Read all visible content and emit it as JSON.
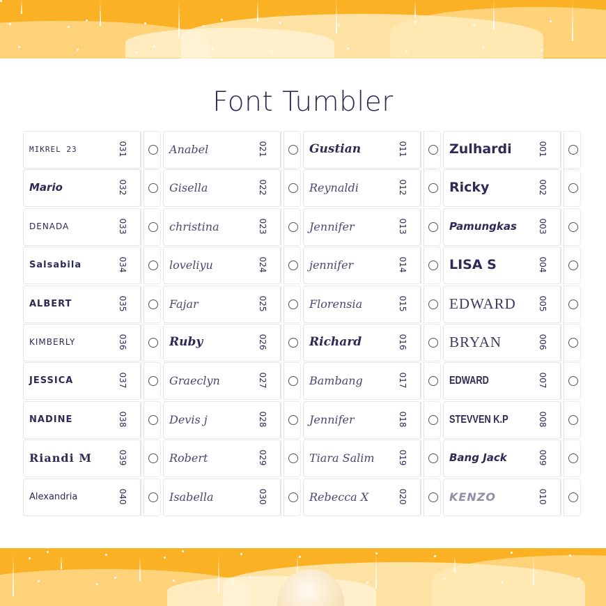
{
  "title": "Font Tumbler",
  "colors": {
    "background": "#fbb124",
    "text": "#2d2a55",
    "panel": "#ffffff"
  },
  "columns": [
    {
      "items": [
        {
          "name": "MIKREL 23",
          "number": "031"
        },
        {
          "name": "Mario",
          "number": "032"
        },
        {
          "name": "DENADA",
          "number": "033"
        },
        {
          "name": "Salsabila",
          "number": "034"
        },
        {
          "name": "ALBERT",
          "number": "035"
        },
        {
          "name": "KIMBERLY",
          "number": "036"
        },
        {
          "name": "JESSICA",
          "number": "037"
        },
        {
          "name": "NADINE",
          "number": "038"
        },
        {
          "name": "Riandi M",
          "number": "039"
        },
        {
          "name": "Alexandria",
          "number": "040"
        }
      ]
    },
    {
      "items": [
        {
          "name": "Anabel",
          "number": "021"
        },
        {
          "name": "Gisella",
          "number": "022"
        },
        {
          "name": "christina",
          "number": "023"
        },
        {
          "name": "loveliyu",
          "number": "024"
        },
        {
          "name": "Fajar",
          "number": "025"
        },
        {
          "name": "Ruby",
          "number": "026"
        },
        {
          "name": "Graeclyn",
          "number": "027"
        },
        {
          "name": "Devis j",
          "number": "028"
        },
        {
          "name": "Robert",
          "number": "029"
        },
        {
          "name": "Isabella",
          "number": "030"
        }
      ]
    },
    {
      "items": [
        {
          "name": "Gustian",
          "number": "011"
        },
        {
          "name": "Reynaldi",
          "number": "012"
        },
        {
          "name": "Jennifer",
          "number": "013"
        },
        {
          "name": "jennifer",
          "number": "014"
        },
        {
          "name": "Florensia",
          "number": "015"
        },
        {
          "name": "Richard",
          "number": "016"
        },
        {
          "name": "Bambang",
          "number": "017"
        },
        {
          "name": "Jennifer",
          "number": "018"
        },
        {
          "name": "Tiara Salim",
          "number": "019"
        },
        {
          "name": "Rebecca X",
          "number": "020"
        }
      ]
    },
    {
      "items": [
        {
          "name": "Zulhardi",
          "number": "001"
        },
        {
          "name": "Ricky",
          "number": "002"
        },
        {
          "name": "Pamungkas",
          "number": "003"
        },
        {
          "name": "LISA S",
          "number": "004"
        },
        {
          "name": "EDWARD",
          "number": "005"
        },
        {
          "name": "BRYAN",
          "number": "006"
        },
        {
          "name": "EDWARD",
          "number": "007"
        },
        {
          "name": "STEVVEN K.P",
          "number": "008"
        },
        {
          "name": "Bang Jack",
          "number": "009"
        },
        {
          "name": "KENZO",
          "number": "010"
        }
      ]
    }
  ]
}
